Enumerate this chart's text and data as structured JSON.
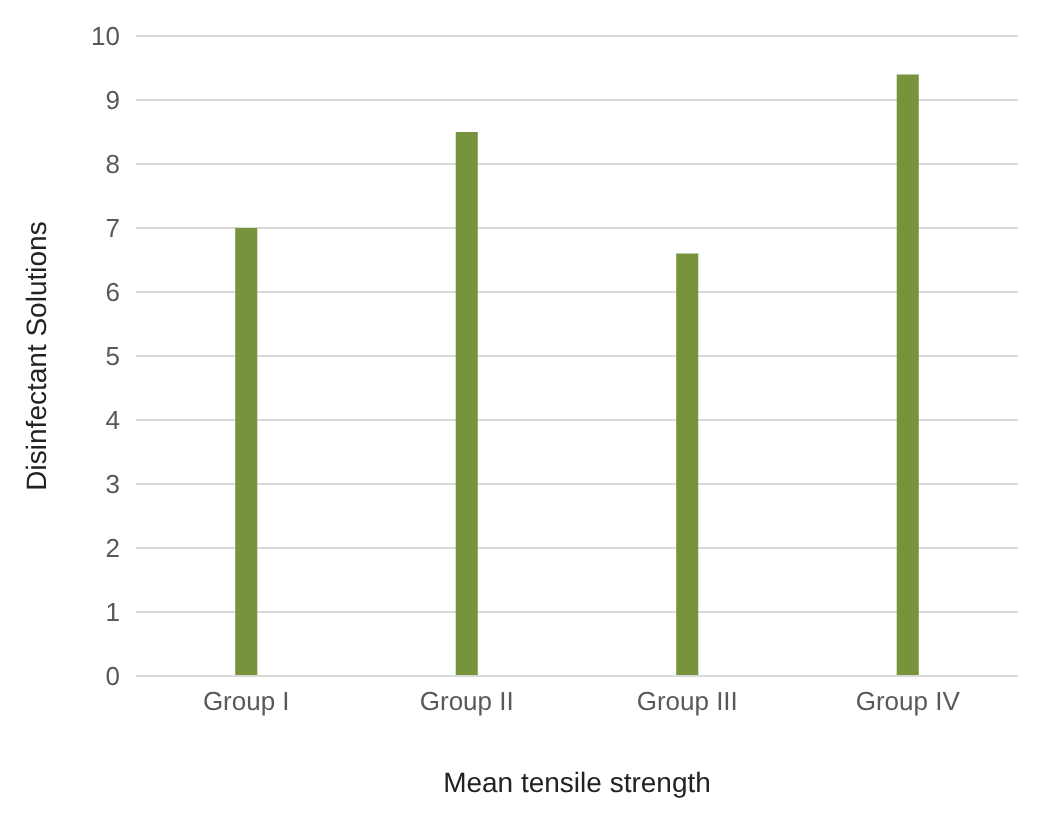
{
  "chart_data": {
    "type": "bar",
    "xlabel": "Mean tensile strength",
    "ylabel": "Disinfectant Solutions",
    "categories": [
      "Group I",
      "Group II",
      "Group III",
      "Group IV"
    ],
    "values": [
      7.0,
      8.5,
      6.6,
      9.4
    ],
    "color": "#77933c",
    "ylim": [
      0,
      10
    ],
    "yticks": [
      0,
      1,
      2,
      3,
      4,
      5,
      6,
      7,
      8,
      9,
      10
    ],
    "grid": "y"
  }
}
